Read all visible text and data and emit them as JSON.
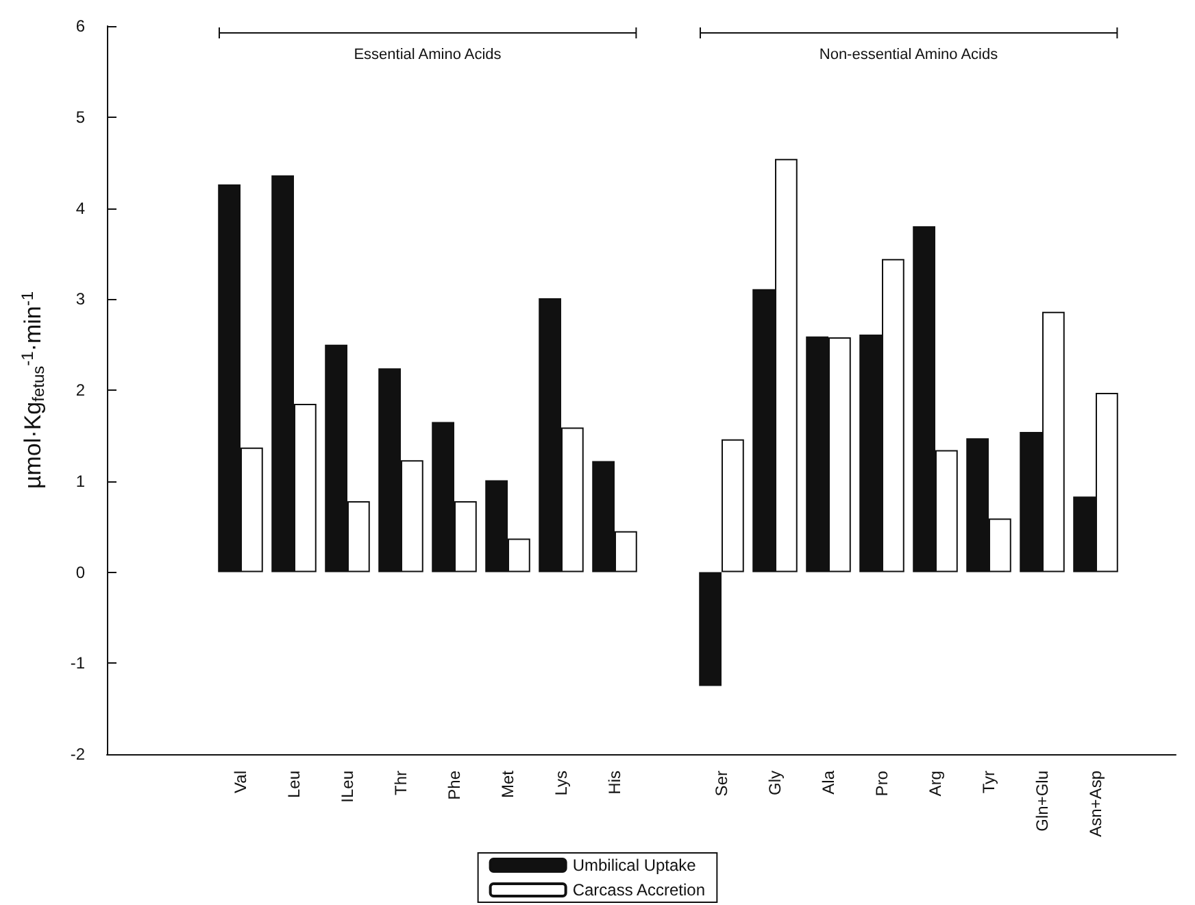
{
  "chart_data": {
    "type": "bar",
    "ylabel": "µmol·Kg$_{fetus}$$^{-1}$·min$^{-1}$",
    "annotations": [
      "Essential Amino Acids",
      "Non-essential Amino Acids"
    ],
    "categories": [
      null,
      null,
      "Val",
      "Leu",
      "ILeu",
      "Thr",
      "Phe",
      "Met",
      "Lys",
      "His",
      null,
      "Ser",
      "Gly",
      "Ala",
      "Pro",
      "Arg",
      "Tyr",
      "Gln+Glu",
      "Asn+Asp",
      null
    ],
    "series": [
      {
        "name": "Umbilical Uptake",
        "color": "#111111",
        "values": [
          null,
          null,
          4.26,
          4.36,
          2.5,
          2.24,
          1.65,
          1.01,
          3.01,
          1.22,
          null,
          -1.25,
          3.11,
          2.59,
          2.61,
          3.8,
          1.47,
          1.54,
          0.83,
          null
        ]
      },
      {
        "name": "Carcass Accretion",
        "color": "#ffffff",
        "values": [
          null,
          null,
          1.37,
          1.85,
          0.78,
          1.23,
          0.78,
          0.37,
          1.59,
          0.45,
          null,
          1.46,
          4.54,
          2.58,
          3.44,
          1.34,
          0.59,
          2.86,
          1.97,
          null
        ]
      }
    ],
    "ylim": [
      -2,
      6
    ],
    "yticks": [
      -2,
      -1,
      0,
      1,
      2,
      3,
      4,
      5,
      6
    ],
    "grid": false,
    "legend": "bottom"
  }
}
